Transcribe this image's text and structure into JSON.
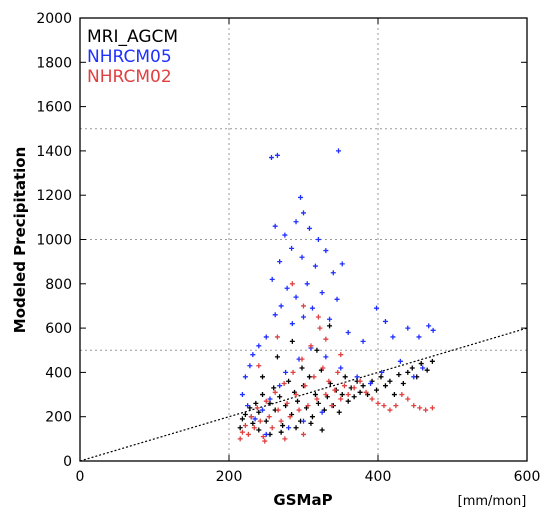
{
  "chart_data": {
    "type": "scatter",
    "xlabel": "GSMaP",
    "xunit": "[mm/mon]",
    "ylabel": "Modeled Precipitation",
    "xlim": [
      0,
      600
    ],
    "ylim": [
      0,
      2000
    ],
    "xticks": [
      0,
      200,
      400,
      600
    ],
    "yticks": [
      0,
      200,
      400,
      600,
      800,
      1000,
      1200,
      1400,
      1600,
      1800,
      2000
    ],
    "grid": true,
    "reference_line": {
      "from": [
        0,
        0
      ],
      "to": [
        600,
        600
      ],
      "style": "dotted"
    },
    "legend_position": "top-left",
    "series": [
      {
        "name": "MRI_AGCM",
        "color": "#000000",
        "points": [
          [
            215,
            150
          ],
          [
            218,
            190
          ],
          [
            222,
            210
          ],
          [
            228,
            240
          ],
          [
            232,
            170
          ],
          [
            236,
            260
          ],
          [
            240,
            220
          ],
          [
            245,
            300
          ],
          [
            250,
            180
          ],
          [
            255,
            260
          ],
          [
            260,
            330
          ],
          [
            262,
            230
          ],
          [
            268,
            290
          ],
          [
            272,
            160
          ],
          [
            276,
            250
          ],
          [
            280,
            360
          ],
          [
            284,
            210
          ],
          [
            288,
            310
          ],
          [
            292,
            270
          ],
          [
            296,
            180
          ],
          [
            300,
            340
          ],
          [
            304,
            240
          ],
          [
            308,
            380
          ],
          [
            312,
            200
          ],
          [
            316,
            300
          ],
          [
            320,
            260
          ],
          [
            324,
            410
          ],
          [
            328,
            230
          ],
          [
            332,
            290
          ],
          [
            336,
            350
          ],
          [
            340,
            250
          ],
          [
            344,
            320
          ],
          [
            348,
            220
          ],
          [
            352,
            300
          ],
          [
            356,
            380
          ],
          [
            360,
            270
          ],
          [
            364,
            330
          ],
          [
            368,
            290
          ],
          [
            372,
            360
          ],
          [
            376,
            310
          ],
          [
            380,
            340
          ],
          [
            386,
            300
          ],
          [
            392,
            360
          ],
          [
            398,
            320
          ],
          [
            404,
            380
          ],
          [
            410,
            340
          ],
          [
            416,
            360
          ],
          [
            422,
            300
          ],
          [
            428,
            390
          ],
          [
            434,
            350
          ],
          [
            440,
            400
          ],
          [
            446,
            420
          ],
          [
            452,
            380
          ],
          [
            458,
            440
          ],
          [
            466,
            410
          ],
          [
            473,
            450
          ],
          [
            240,
            140
          ],
          [
            255,
            120
          ],
          [
            270,
            130
          ],
          [
            290,
            150
          ],
          [
            310,
            170
          ],
          [
            325,
            140
          ],
          [
            230,
            200
          ],
          [
            298,
            420
          ],
          [
            318,
            500
          ],
          [
            335,
            610
          ],
          [
            265,
            470
          ],
          [
            245,
            380
          ],
          [
            285,
            540
          ]
        ]
      },
      {
        "name": "NHRCM05",
        "color": "#2030ff",
        "points": [
          [
            257,
            1370
          ],
          [
            265,
            1380
          ],
          [
            347,
            1400
          ],
          [
            296,
            1190
          ],
          [
            300,
            1120
          ],
          [
            290,
            1080
          ],
          [
            262,
            1060
          ],
          [
            308,
            1050
          ],
          [
            275,
            1020
          ],
          [
            320,
            1000
          ],
          [
            284,
            960
          ],
          [
            330,
            950
          ],
          [
            298,
            920
          ],
          [
            268,
            900
          ],
          [
            316,
            880
          ],
          [
            352,
            890
          ],
          [
            340,
            850
          ],
          [
            258,
            820
          ],
          [
            305,
            800
          ],
          [
            278,
            780
          ],
          [
            325,
            760
          ],
          [
            290,
            740
          ],
          [
            345,
            730
          ],
          [
            270,
            700
          ],
          [
            312,
            690
          ],
          [
            398,
            690
          ],
          [
            262,
            660
          ],
          [
            300,
            650
          ],
          [
            335,
            640
          ],
          [
            285,
            620
          ],
          [
            410,
            630
          ],
          [
            440,
            600
          ],
          [
            455,
            560
          ],
          [
            468,
            610
          ],
          [
            474,
            590
          ],
          [
            420,
            560
          ],
          [
            380,
            540
          ],
          [
            360,
            580
          ],
          [
            250,
            560
          ],
          [
            240,
            520
          ],
          [
            232,
            480
          ],
          [
            228,
            430
          ],
          [
            222,
            380
          ],
          [
            218,
            300
          ],
          [
            225,
            250
          ],
          [
            235,
            190
          ],
          [
            245,
            230
          ],
          [
            255,
            280
          ],
          [
            268,
            340
          ],
          [
            276,
            400
          ],
          [
            294,
            460
          ],
          [
            310,
            510
          ],
          [
            330,
            470
          ],
          [
            350,
            420
          ],
          [
            372,
            380
          ],
          [
            390,
            350
          ],
          [
            405,
            400
          ],
          [
            430,
            450
          ],
          [
            448,
            380
          ],
          [
            460,
            420
          ],
          [
            250,
            120
          ],
          [
            280,
            150
          ],
          [
            300,
            180
          ],
          [
            325,
            220
          ]
        ]
      },
      {
        "name": "NHRCM02",
        "color": "#e04040",
        "points": [
          [
            215,
            100
          ],
          [
            218,
            130
          ],
          [
            222,
            160
          ],
          [
            226,
            120
          ],
          [
            230,
            200
          ],
          [
            234,
            150
          ],
          [
            238,
            240
          ],
          [
            242,
            180
          ],
          [
            246,
            110
          ],
          [
            250,
            270
          ],
          [
            254,
            200
          ],
          [
            258,
            150
          ],
          [
            262,
            310
          ],
          [
            266,
            230
          ],
          [
            270,
            180
          ],
          [
            274,
            350
          ],
          [
            278,
            260
          ],
          [
            282,
            200
          ],
          [
            286,
            400
          ],
          [
            290,
            300
          ],
          [
            294,
            230
          ],
          [
            298,
            460
          ],
          [
            302,
            340
          ],
          [
            306,
            250
          ],
          [
            310,
            520
          ],
          [
            314,
            380
          ],
          [
            318,
            280
          ],
          [
            322,
            600
          ],
          [
            326,
            420
          ],
          [
            330,
            300
          ],
          [
            334,
            360
          ],
          [
            338,
            250
          ],
          [
            342,
            320
          ],
          [
            346,
            400
          ],
          [
            350,
            280
          ],
          [
            355,
            340
          ],
          [
            360,
            300
          ],
          [
            368,
            330
          ],
          [
            376,
            360
          ],
          [
            384,
            310
          ],
          [
            392,
            280
          ],
          [
            400,
            260
          ],
          [
            408,
            250
          ],
          [
            416,
            230
          ],
          [
            424,
            250
          ],
          [
            432,
            300
          ],
          [
            440,
            280
          ],
          [
            448,
            250
          ],
          [
            456,
            240
          ],
          [
            464,
            230
          ],
          [
            473,
            240
          ],
          [
            285,
            800
          ],
          [
            300,
            700
          ],
          [
            320,
            650
          ],
          [
            265,
            560
          ],
          [
            240,
            430
          ],
          [
            330,
            550
          ],
          [
            350,
            480
          ],
          [
            248,
            90
          ],
          [
            275,
            100
          ],
          [
            300,
            120
          ]
        ]
      }
    ]
  }
}
